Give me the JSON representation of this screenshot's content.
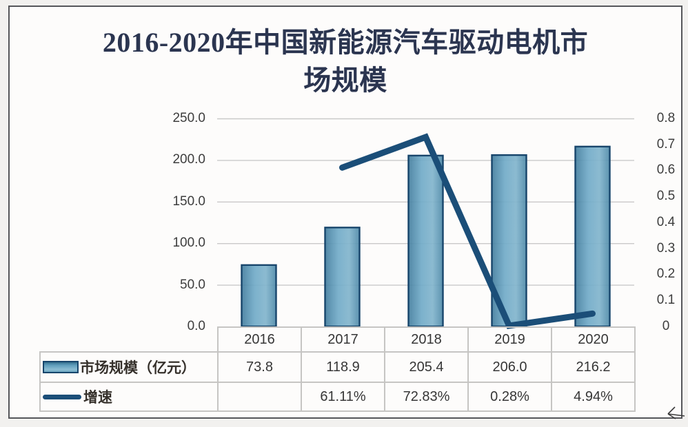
{
  "title": "2016-2020年中国新能源汽车驱动电机市场规模",
  "chart_data": {
    "type": "bar",
    "subtype": "combo-bar-line-dual-axis",
    "title": "2016-2020年中国新能源汽车驱动电机市场规模",
    "categories": [
      "2016",
      "2017",
      "2018",
      "2019",
      "2020"
    ],
    "series": [
      {
        "name": "市场规模（亿元）",
        "chart": "bar",
        "axis": "left",
        "values": [
          73.8,
          118.9,
          205.4,
          206.0,
          216.2
        ]
      },
      {
        "name": "增速",
        "chart": "line",
        "axis": "right",
        "values": [
          null,
          0.6111,
          0.7283,
          0.0028,
          0.0494
        ],
        "value_labels": [
          "",
          "61.11%",
          "72.83%",
          "0.28%",
          "4.94%"
        ]
      }
    ],
    "left_axis": {
      "min": 0,
      "max": 250,
      "ticks": [
        "250.0",
        "200.0",
        "150.0",
        "100.0",
        "50.0",
        "0.0"
      ]
    },
    "right_axis": {
      "min": 0,
      "max": 0.8,
      "ticks": [
        "0.8",
        "0.7",
        "0.6",
        "0.5",
        "0.4",
        "0.3",
        "0.2",
        "0.1",
        "0"
      ]
    },
    "grid": true,
    "legend_position": "bottom-table-left"
  },
  "table": {
    "corner": "",
    "columns": [
      "2016",
      "2017",
      "2018",
      "2019",
      "2020"
    ],
    "rows": [
      {
        "label": "市场规模（亿元）",
        "swatch": "bar-swatch",
        "values": [
          "73.8",
          "118.9",
          "205.4",
          "206.0",
          "216.2"
        ]
      },
      {
        "label": "增速",
        "swatch": "line-swatch",
        "values": [
          "",
          "61.11%",
          "72.83%",
          "0.28%",
          "4.94%"
        ]
      }
    ]
  },
  "colors": {
    "page_bg": "#f2f1ef",
    "frame_bg": "#fdfcfb",
    "frame_border": "#55565a",
    "title_text": "#2b3550",
    "axis_text": "#3d3d3d",
    "grid_line": "#c9c9c9",
    "table_border": "#c6c5c3",
    "bar_border": "#17456b",
    "bar_gradient": [
      "#447e9e",
      "#71abc8",
      "#82b5cd",
      "#4f8aa9"
    ],
    "line": "#1b4e78"
  }
}
